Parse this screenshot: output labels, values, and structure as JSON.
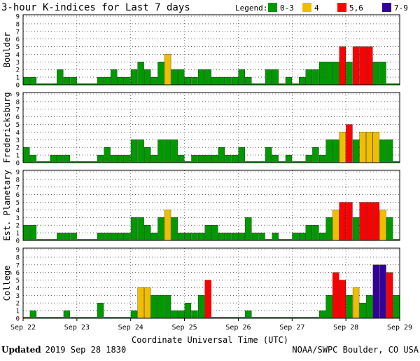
{
  "title": "3-hour K-indices for Last 7 days",
  "legend": {
    "label": "Legend:",
    "items": [
      {
        "name": "0-3",
        "color": "#009900"
      },
      {
        "name": "4",
        "color": "#f0be00"
      },
      {
        "name": "5,6",
        "color": "#ff0000"
      },
      {
        "name": "7-9",
        "color": "#330099"
      }
    ]
  },
  "footer": {
    "updated_label": "Updated",
    "updated_value": "2019 Sep 28 1830",
    "credit": "NOAA/SWPC Boulder, CO USA"
  },
  "chart_data": {
    "type": "bar",
    "xlabel": "Coordinate Universal Time (UTC)",
    "x_ticks": [
      "Sep 22",
      "Sep 23",
      "Sep 24",
      "Sep 25",
      "Sep 26",
      "Sep 27",
      "Sep 28",
      "Sep 29"
    ],
    "ylim": [
      0,
      9
    ],
    "y_ticks": [
      "0",
      "1",
      "2",
      "3",
      "4",
      "5",
      "6",
      "7",
      "8",
      "9"
    ],
    "grid": "dotted horizontal",
    "panels": [
      {
        "name": "Boulder",
        "values": [
          1,
          1,
          0,
          0,
          0,
          2,
          1,
          1,
          0,
          0,
          0,
          1,
          1,
          2,
          1,
          1,
          2,
          3,
          2,
          1,
          3,
          4,
          2,
          2,
          1,
          1,
          2,
          2,
          1,
          1,
          1,
          1,
          2,
          1,
          0,
          0,
          2,
          2,
          0,
          1,
          0,
          1,
          2,
          2,
          3,
          3,
          3,
          5,
          3,
          5,
          5,
          5,
          3,
          3,
          0,
          0
        ]
      },
      {
        "name": "Fredericksburg",
        "values": [
          2,
          1,
          0,
          0,
          1,
          1,
          1,
          0,
          0,
          0,
          0,
          1,
          2,
          1,
          1,
          1,
          3,
          3,
          2,
          1,
          3,
          3,
          3,
          1,
          0,
          1,
          1,
          1,
          1,
          2,
          1,
          1,
          2,
          0,
          0,
          0,
          2,
          1,
          0,
          1,
          0,
          0,
          1,
          2,
          1,
          3,
          3,
          4,
          5,
          3,
          4,
          4,
          4,
          3,
          3,
          0
        ]
      },
      {
        "name": "Est. Planetary",
        "values": [
          2,
          2,
          0,
          0,
          0,
          1,
          1,
          1,
          0,
          0,
          0,
          1,
          1,
          1,
          1,
          1,
          3,
          3,
          2,
          1,
          3,
          4,
          3,
          1,
          1,
          1,
          1,
          2,
          2,
          1,
          1,
          1,
          1,
          3,
          1,
          1,
          0,
          1,
          0,
          0,
          1,
          1,
          2,
          2,
          1,
          3,
          4,
          5,
          5,
          3,
          5,
          5,
          5,
          4,
          3,
          0
        ]
      },
      {
        "name": "College",
        "values": [
          0,
          1,
          0,
          0,
          0,
          0,
          1,
          0,
          0,
          0,
          0,
          2,
          0,
          0,
          0,
          0,
          1,
          4,
          4,
          3,
          3,
          3,
          1,
          1,
          2,
          1,
          3,
          5,
          0,
          0,
          0,
          0,
          0,
          1,
          0,
          0,
          0,
          0,
          0,
          0,
          0,
          0,
          0,
          0,
          1,
          3,
          6,
          5,
          3,
          4,
          2,
          3,
          7,
          7,
          6,
          3
        ]
      }
    ]
  }
}
